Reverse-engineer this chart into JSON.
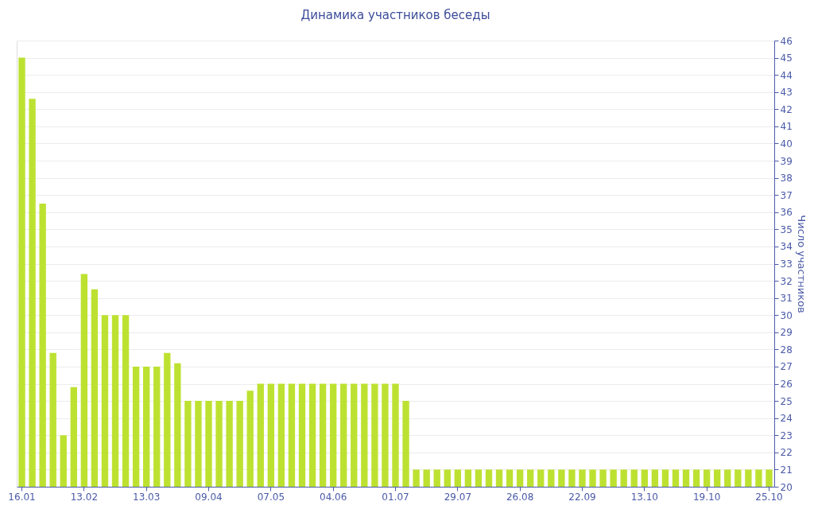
{
  "chart_data": {
    "type": "bar",
    "title": "Динамика участников беседы",
    "ylabel": "Число участников",
    "categories": [
      "16.01",
      null,
      null,
      null,
      null,
      null,
      "13.02",
      null,
      null,
      null,
      null,
      null,
      "13.03",
      null,
      null,
      null,
      null,
      null,
      "09.04",
      null,
      null,
      null,
      null,
      null,
      "07.05",
      null,
      null,
      null,
      null,
      null,
      "04.06",
      null,
      null,
      null,
      null,
      null,
      "01.07",
      null,
      null,
      null,
      null,
      null,
      "29.07",
      null,
      null,
      null,
      null,
      null,
      "26.08",
      null,
      null,
      null,
      null,
      null,
      "22.09",
      null,
      null,
      null,
      null,
      null,
      "13.10",
      null,
      null,
      null,
      null,
      null,
      "19.10",
      null,
      null,
      null,
      null,
      null,
      "25.10"
    ],
    "values": [
      45,
      42.6,
      36.5,
      27.8,
      23,
      25.8,
      32.4,
      31.5,
      30,
      30,
      30,
      27,
      27,
      27,
      27.8,
      27.2,
      25,
      25,
      25,
      25,
      25,
      25,
      25.6,
      26,
      26,
      26,
      26,
      26,
      26,
      26,
      26,
      26,
      26,
      26,
      26,
      26,
      26,
      25,
      21,
      21,
      21,
      21,
      21,
      21,
      21,
      21,
      21,
      21,
      21,
      21,
      21,
      21,
      21,
      21,
      21,
      21,
      21,
      21,
      21,
      21,
      21,
      21,
      21,
      21,
      21,
      21,
      21,
      21,
      21,
      21,
      21,
      21,
      21
    ],
    "color": "#bde131",
    "ylim": [
      20,
      46
    ],
    "yticks": [
      20,
      21,
      22,
      23,
      24,
      25,
      26,
      27,
      28,
      29,
      30,
      31,
      32,
      33,
      34,
      35,
      36,
      37,
      38,
      39,
      40,
      41,
      42,
      43,
      44,
      45,
      46
    ],
    "grid": "y"
  }
}
